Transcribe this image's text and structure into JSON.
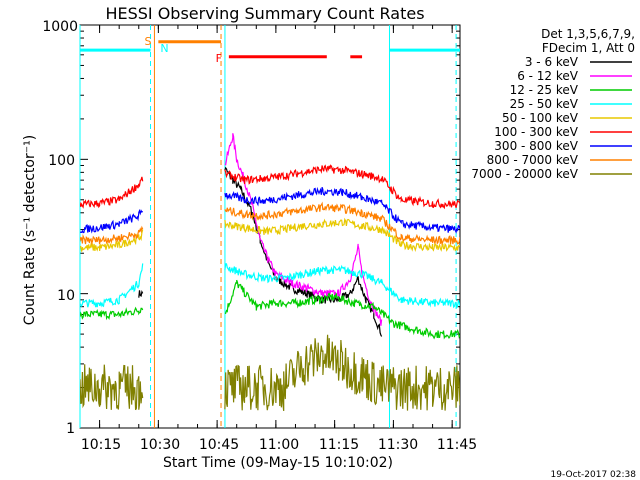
{
  "chart_data": {
    "type": "line",
    "title": "HESSI Observing Summary Count Rates",
    "xlabel": "Start Time (09-May-15 10:10:02)",
    "ylabel": "Count Rate (s⁻¹ detector⁻¹)",
    "y_scale": "log",
    "ylim": [
      1,
      1000
    ],
    "x_range_minutes": [
      "10:10",
      "11:47"
    ],
    "x_ticks": [
      "10:15",
      "10:30",
      "10:45",
      "11:00",
      "11:15",
      "11:30",
      "11:45"
    ],
    "y_ticks": [
      "1",
      "10",
      "100",
      "1000"
    ],
    "legend_header": [
      "Det 1,3,5,6,7,9,",
      "FDecim 1, Att 0"
    ],
    "legend_position": "right",
    "series": [
      {
        "name": "3 - 6 keV",
        "color": "#000000",
        "points": [
          [
            "10:25",
            10
          ],
          [
            "10:26",
            10
          ],
          [
            "10:47",
            85
          ],
          [
            "10:49",
            70
          ],
          [
            "10:51",
            60
          ],
          [
            "10:54",
            40
          ],
          [
            "10:56",
            25
          ],
          [
            "10:58",
            17
          ],
          [
            "11:00",
            13
          ],
          [
            "11:04",
            11
          ],
          [
            "11:08",
            10
          ],
          [
            "11:12",
            9
          ],
          [
            "11:16",
            9
          ],
          [
            "11:19",
            10
          ],
          [
            "11:21",
            13
          ],
          [
            "11:23",
            9
          ],
          [
            "11:25",
            7
          ],
          [
            "11:27",
            5
          ]
        ]
      },
      {
        "name": "6 - 12 keV",
        "color": "#ff00ff",
        "points": [
          [
            "10:47",
            90
          ],
          [
            "10:49",
            150
          ],
          [
            "10:50",
            100
          ],
          [
            "10:52",
            70
          ],
          [
            "10:54",
            45
          ],
          [
            "10:56",
            25
          ],
          [
            "10:58",
            18
          ],
          [
            "11:00",
            14
          ],
          [
            "11:04",
            12
          ],
          [
            "11:08",
            11
          ],
          [
            "11:12",
            10
          ],
          [
            "11:16",
            10
          ],
          [
            "11:19",
            13
          ],
          [
            "11:21",
            22
          ],
          [
            "11:22",
            14
          ],
          [
            "11:24",
            9
          ],
          [
            "11:27",
            6
          ]
        ]
      },
      {
        "name": "12 - 25 keV",
        "color": "#00cc00",
        "points": [
          [
            "10:10",
            7
          ],
          [
            "10:15",
            7
          ],
          [
            "10:20",
            7
          ],
          [
            "10:25",
            7.5
          ],
          [
            "10:26",
            8
          ],
          [
            "10:47",
            7
          ],
          [
            "10:50",
            12
          ],
          [
            "10:55",
            8
          ],
          [
            "11:00",
            8.5
          ],
          [
            "11:05",
            8.5
          ],
          [
            "11:10",
            9
          ],
          [
            "11:15",
            9.5
          ],
          [
            "11:20",
            8.5
          ],
          [
            "11:25",
            8
          ],
          [
            "11:30",
            6
          ],
          [
            "11:40",
            5
          ],
          [
            "11:47",
            5
          ]
        ]
      },
      {
        "name": "25 - 50 keV",
        "color": "#00ffff",
        "points": [
          [
            "10:10",
            8.5
          ],
          [
            "10:15",
            8.5
          ],
          [
            "10:20",
            9
          ],
          [
            "10:25",
            12
          ],
          [
            "10:26",
            16
          ],
          [
            "10:47",
            16
          ],
          [
            "10:52",
            14
          ],
          [
            "10:57",
            13
          ],
          [
            "11:02",
            13
          ],
          [
            "11:07",
            14
          ],
          [
            "11:12",
            15
          ],
          [
            "11:17",
            15
          ],
          [
            "11:22",
            14
          ],
          [
            "11:27",
            12
          ],
          [
            "11:32",
            9
          ],
          [
            "11:40",
            8.5
          ],
          [
            "11:47",
            8.5
          ]
        ]
      },
      {
        "name": "50 - 100 keV",
        "color": "#e8c800",
        "points": [
          [
            "10:10",
            22
          ],
          [
            "10:15",
            22
          ],
          [
            "10:20",
            23
          ],
          [
            "10:25",
            26
          ],
          [
            "10:26",
            28
          ],
          [
            "10:47",
            33
          ],
          [
            "10:52",
            31
          ],
          [
            "10:57",
            29
          ],
          [
            "11:02",
            30
          ],
          [
            "11:07",
            32
          ],
          [
            "11:12",
            33
          ],
          [
            "11:17",
            34
          ],
          [
            "11:22",
            32
          ],
          [
            "11:27",
            30
          ],
          [
            "11:32",
            23
          ],
          [
            "11:40",
            22
          ],
          [
            "11:47",
            22
          ]
        ]
      },
      {
        "name": "100 - 300 keV",
        "color": "#ff0000",
        "points": [
          [
            "10:10",
            46
          ],
          [
            "10:15",
            47
          ],
          [
            "10:20",
            50
          ],
          [
            "10:25",
            65
          ],
          [
            "10:26",
            72
          ],
          [
            "10:47",
            78
          ],
          [
            "10:52",
            70
          ],
          [
            "10:57",
            72
          ],
          [
            "11:02",
            75
          ],
          [
            "11:07",
            80
          ],
          [
            "11:12",
            85
          ],
          [
            "11:17",
            83
          ],
          [
            "11:22",
            78
          ],
          [
            "11:27",
            72
          ],
          [
            "11:32",
            50
          ],
          [
            "11:40",
            47
          ],
          [
            "11:47",
            46
          ]
        ]
      },
      {
        "name": "300 - 800 keV",
        "color": "#0000ff",
        "points": [
          [
            "10:10",
            30
          ],
          [
            "10:15",
            31
          ],
          [
            "10:20",
            33
          ],
          [
            "10:25",
            38
          ],
          [
            "10:26",
            43
          ],
          [
            "10:47",
            55
          ],
          [
            "10:52",
            50
          ],
          [
            "10:57",
            49
          ],
          [
            "11:02",
            52
          ],
          [
            "11:07",
            55
          ],
          [
            "11:12",
            58
          ],
          [
            "11:17",
            57
          ],
          [
            "11:22",
            52
          ],
          [
            "11:27",
            47
          ],
          [
            "11:32",
            33
          ],
          [
            "11:40",
            31
          ],
          [
            "11:47",
            30
          ]
        ]
      },
      {
        "name": "800 - 7000 keV",
        "color": "#ff8000",
        "points": [
          [
            "10:10",
            25
          ],
          [
            "10:15",
            25
          ],
          [
            "10:20",
            26
          ],
          [
            "10:25",
            28
          ],
          [
            "10:26",
            31
          ],
          [
            "10:47",
            42
          ],
          [
            "10:52",
            39
          ],
          [
            "10:57",
            38
          ],
          [
            "11:02",
            40
          ],
          [
            "11:07",
            42
          ],
          [
            "11:12",
            44
          ],
          [
            "11:17",
            43
          ],
          [
            "11:22",
            40
          ],
          [
            "11:27",
            36
          ],
          [
            "11:32",
            26
          ],
          [
            "11:40",
            25
          ],
          [
            "11:47",
            25
          ]
        ]
      },
      {
        "name": "7000 - 20000 keV",
        "color": "#808000",
        "points": [
          [
            "10:10",
            2
          ],
          [
            "10:15",
            2
          ],
          [
            "10:20",
            2
          ],
          [
            "10:25",
            2
          ],
          [
            "10:26",
            2
          ],
          [
            "10:47",
            2
          ],
          [
            "10:52",
            2
          ],
          [
            "10:57",
            2
          ],
          [
            "11:02",
            2
          ],
          [
            "11:07",
            3
          ],
          [
            "11:12",
            3.5
          ],
          [
            "11:17",
            3
          ],
          [
            "11:22",
            2.5
          ],
          [
            "11:27",
            2
          ],
          [
            "11:32",
            2
          ],
          [
            "11:40",
            2
          ],
          [
            "11:47",
            2
          ]
        ]
      }
    ],
    "annotations": [
      {
        "label": "S",
        "time": "10:29",
        "color": "#ff8000"
      },
      {
        "label": "N",
        "time": "10:29",
        "color": "#00ffff"
      },
      {
        "label": "F",
        "time": "10:47",
        "color": "#ff0000"
      }
    ],
    "bars": [
      {
        "color": "#00ffff",
        "start": "10:10",
        "end": "10:28",
        "level": 650
      },
      {
        "color": "#ff8000",
        "start": "10:30",
        "end": "10:46",
        "level": 750
      },
      {
        "color": "#ff0000",
        "start": "10:48",
        "end": "11:13",
        "level": 580
      },
      {
        "color": "#ff0000",
        "start": "11:19",
        "end": "11:22",
        "level": 580
      },
      {
        "color": "#00ffff",
        "start": "11:29",
        "end": "11:47",
        "level": 650
      }
    ],
    "solid_vlines": [
      {
        "time": "10:10",
        "color": "#00ffff"
      },
      {
        "time": "10:29",
        "color": "#ff8000"
      },
      {
        "time": "10:47",
        "color": "#00ffff"
      },
      {
        "time": "11:29",
        "color": "#00ffff"
      }
    ],
    "dashed_vlines": [
      {
        "time": "10:28",
        "color": "#00ffff"
      },
      {
        "time": "10:46",
        "color": "#ff8000"
      },
      {
        "time": "11:46",
        "color": "#00ffff"
      }
    ]
  },
  "footer": {
    "timestamp": "19-Oct-2017 02:38"
  }
}
